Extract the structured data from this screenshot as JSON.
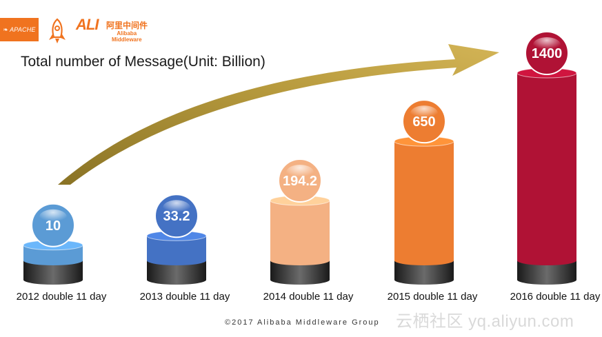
{
  "header": {
    "logos": [
      {
        "name": "apache-logo",
        "text": "APACHE"
      },
      {
        "name": "rocketmq-logo",
        "text": ""
      },
      {
        "name": "alibaba-middleware-logo",
        "mark": "ALI",
        "cn": "阿里中间件",
        "en_line1": "Alibaba",
        "en_line2": "Middleware"
      }
    ]
  },
  "chart_data": {
    "type": "bar",
    "title": "Total number of Message(Unit: Billion)",
    "categories": [
      "2012 double 11 day",
      "2013 double 11 day",
      "2014 double 11 day",
      "2015 double 11 day",
      "2016 double 11 day"
    ],
    "values": [
      10,
      33.2,
      194.2,
      650,
      1400
    ],
    "value_labels": [
      "10",
      "33.2",
      "194.2",
      "650",
      "1400"
    ],
    "colors": [
      "#5b9bd5",
      "#4472c4",
      "#f4b183",
      "#ed7d31",
      "#b01235"
    ],
    "trend_arrow": true,
    "grid": false,
    "legend": "none"
  },
  "footer": {
    "copyright": "©2017  Alibaba  Middleware  Group"
  },
  "watermark": {
    "text": "云栖社区 yq.aliyun.com"
  }
}
